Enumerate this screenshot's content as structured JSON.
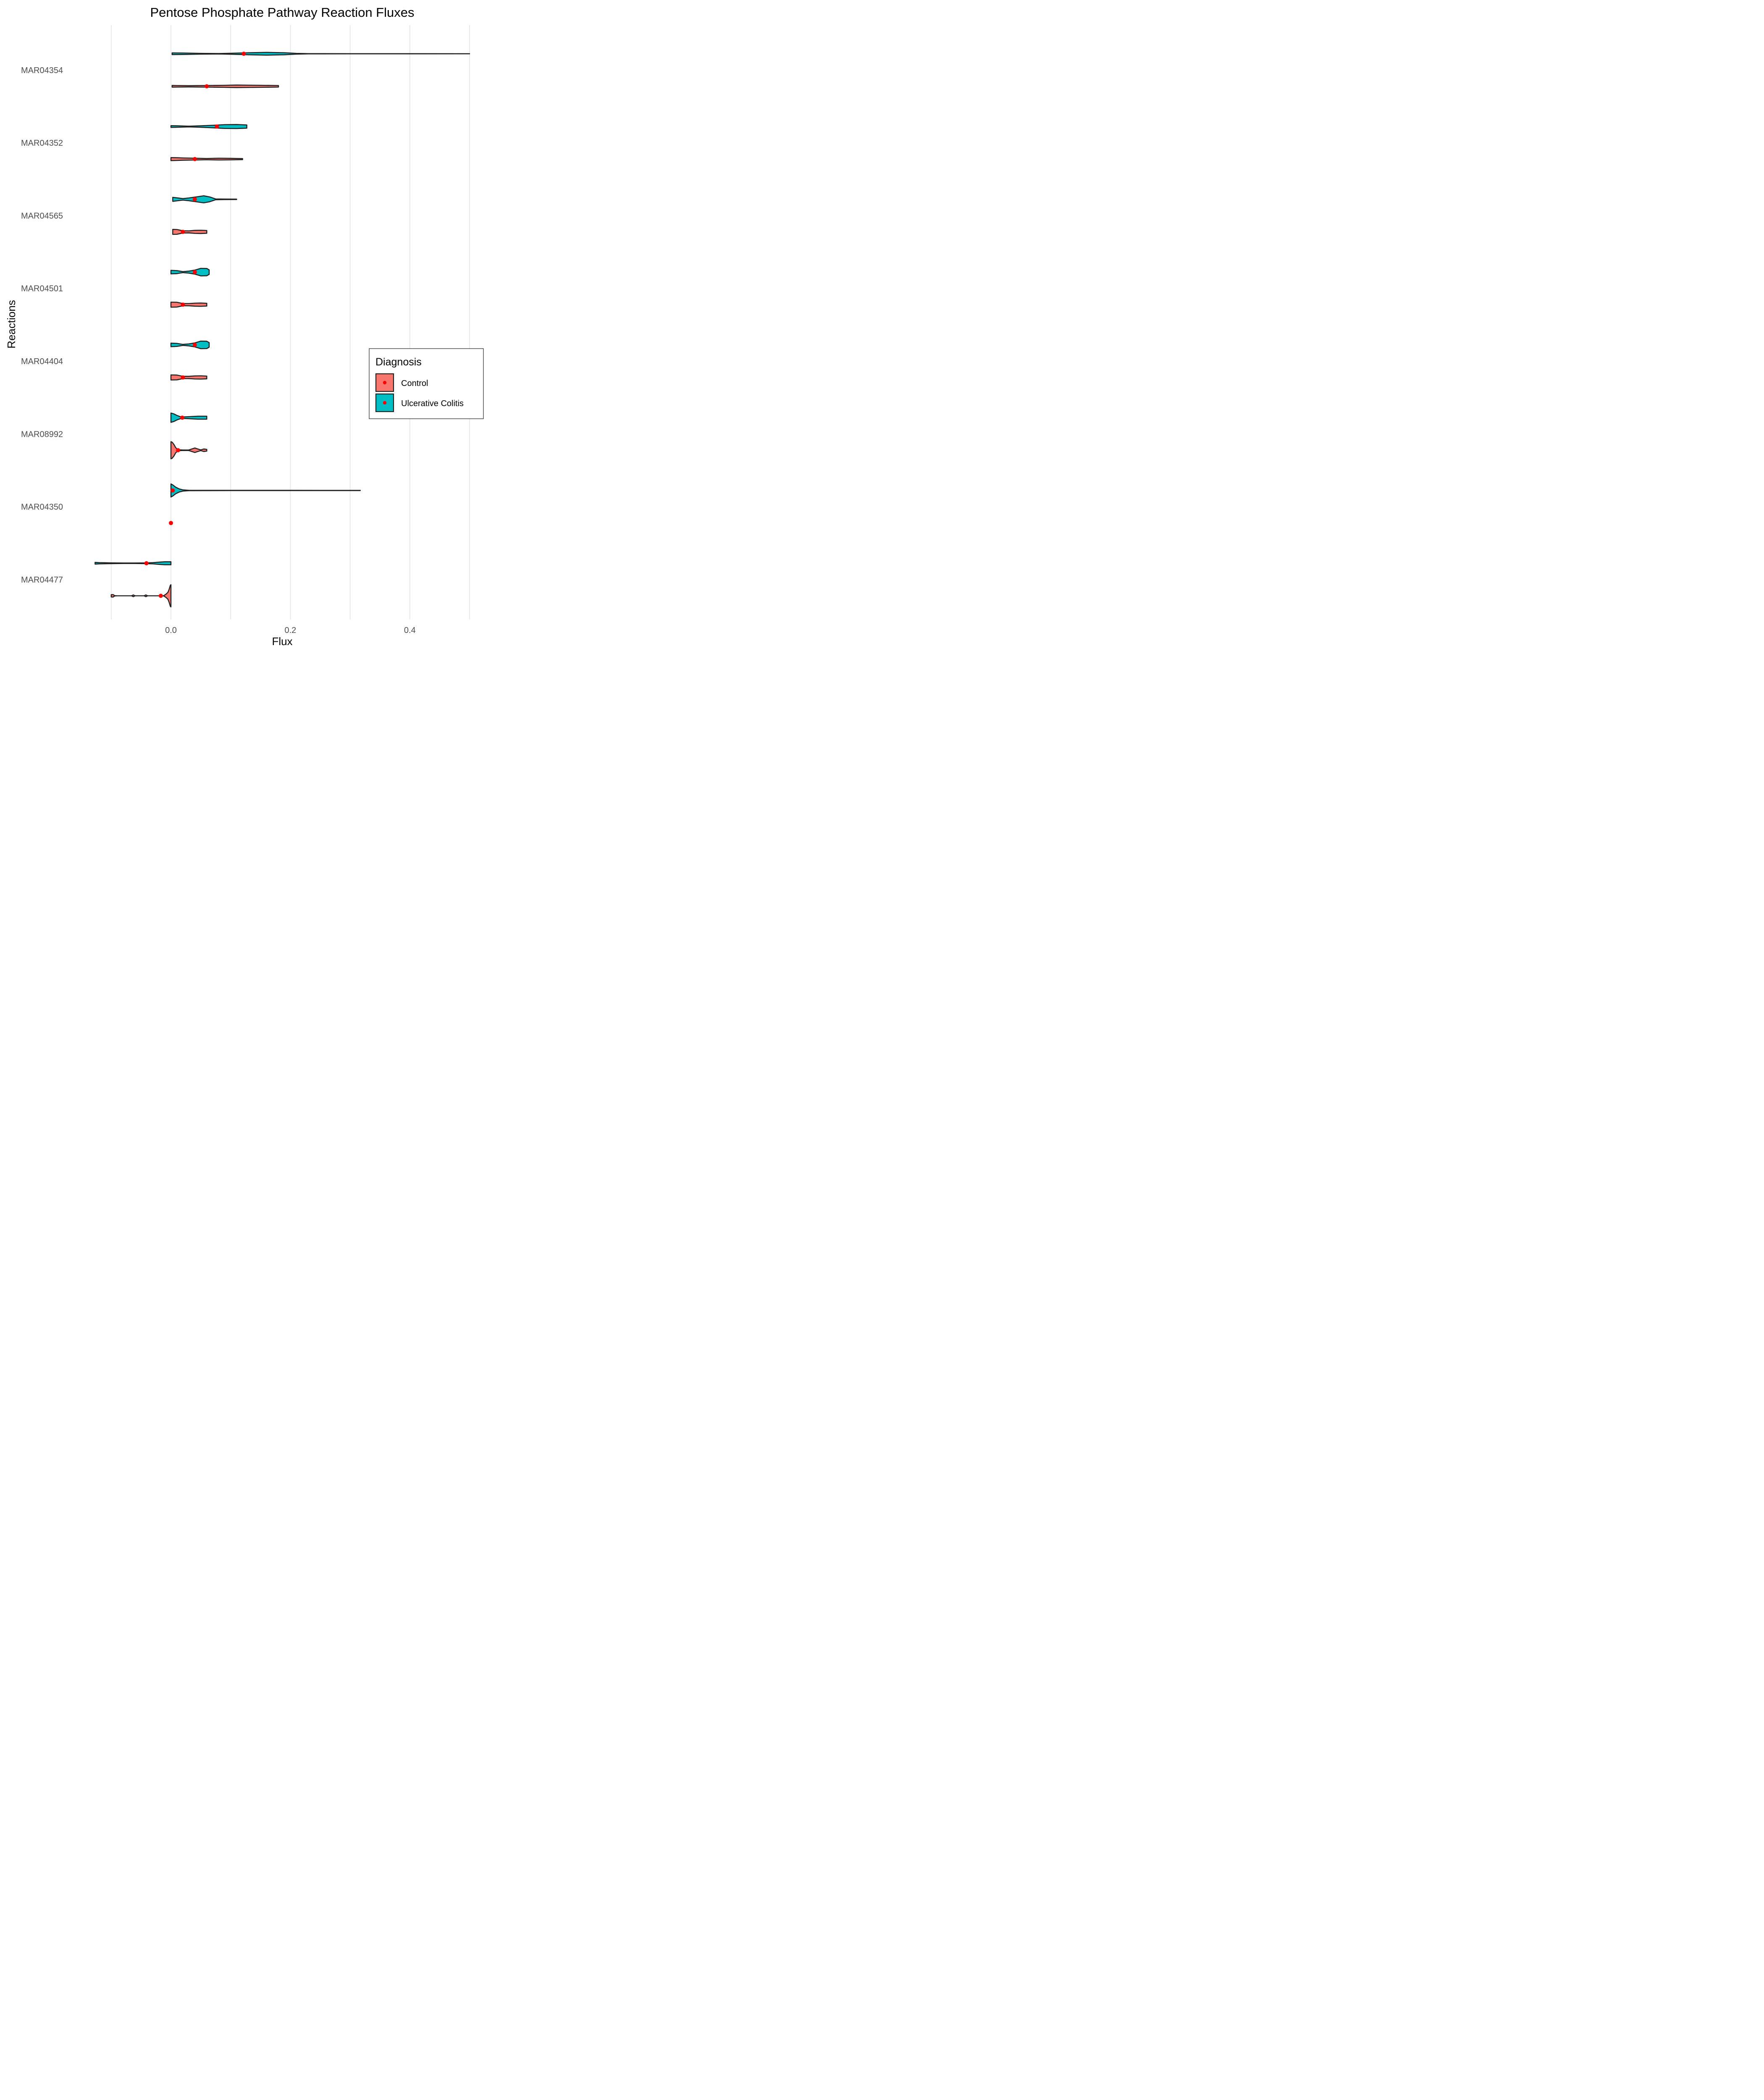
{
  "chart_data": {
    "type": "violin",
    "title": "Pentose Phosphate Pathway Reaction Fluxes",
    "xlabel": "Flux",
    "ylabel": "Reactions",
    "xlim": [
      -0.14,
      0.5
    ],
    "x_ticks": [
      0.0,
      0.2,
      0.4
    ],
    "x_tick_labels": [
      "0.0",
      "0.2",
      "0.4"
    ],
    "orientation": "horizontal",
    "grid": true,
    "legend": {
      "title": "Diagnosis",
      "position": "right",
      "entries": [
        {
          "name": "Control",
          "color": "#F8766D"
        },
        {
          "name": "Ulcerative Colitis",
          "color": "#00BFC4"
        }
      ]
    },
    "mean_marker_color": "#FF0000",
    "categories": [
      "MAR04354",
      "MAR04352",
      "MAR04565",
      "MAR04501",
      "MAR04404",
      "MAR08992",
      "MAR04350",
      "MAR04477"
    ],
    "series": [
      {
        "name": "Control",
        "color": "#F8766D",
        "violins": [
          {
            "reaction": "MAR04354",
            "min": 0.002,
            "max": 0.18,
            "mean": 0.06,
            "density": [
              [
                0.002,
                0.35
              ],
              [
                0.01,
                0.3
              ],
              [
                0.03,
                0.25
              ],
              [
                0.05,
                0.3
              ],
              [
                0.07,
                0.35
              ],
              [
                0.09,
                0.4
              ],
              [
                0.11,
                0.5
              ],
              [
                0.13,
                0.45
              ],
              [
                0.15,
                0.4
              ],
              [
                0.17,
                0.35
              ],
              [
                0.18,
                0.3
              ]
            ]
          },
          {
            "reaction": "MAR04352",
            "min": 0.0,
            "max": 0.12,
            "mean": 0.04,
            "density": [
              [
                0.0,
                0.6
              ],
              [
                0.01,
                0.55
              ],
              [
                0.02,
                0.45
              ],
              [
                0.04,
                0.35
              ],
              [
                0.06,
                0.25
              ],
              [
                0.08,
                0.35
              ],
              [
                0.1,
                0.3
              ],
              [
                0.12,
                0.2
              ]
            ]
          },
          {
            "reaction": "MAR04565",
            "min": 0.003,
            "max": 0.06,
            "mean": 0.02,
            "density": [
              [
                0.003,
                1.0
              ],
              [
                0.01,
                0.95
              ],
              [
                0.015,
                0.7
              ],
              [
                0.02,
                0.45
              ],
              [
                0.03,
                0.4
              ],
              [
                0.04,
                0.6
              ],
              [
                0.05,
                0.65
              ],
              [
                0.06,
                0.55
              ]
            ]
          },
          {
            "reaction": "MAR04501",
            "min": 0.0,
            "max": 0.06,
            "mean": 0.02,
            "density": [
              [
                0.0,
                1.0
              ],
              [
                0.01,
                0.95
              ],
              [
                0.015,
                0.7
              ],
              [
                0.02,
                0.45
              ],
              [
                0.03,
                0.45
              ],
              [
                0.04,
                0.6
              ],
              [
                0.05,
                0.65
              ],
              [
                0.06,
                0.55
              ]
            ]
          },
          {
            "reaction": "MAR04404",
            "min": 0.0,
            "max": 0.06,
            "mean": 0.02,
            "density": [
              [
                0.0,
                1.0
              ],
              [
                0.01,
                0.95
              ],
              [
                0.015,
                0.7
              ],
              [
                0.02,
                0.45
              ],
              [
                0.03,
                0.45
              ],
              [
                0.04,
                0.6
              ],
              [
                0.05,
                0.65
              ],
              [
                0.06,
                0.55
              ]
            ]
          },
          {
            "reaction": "MAR08992",
            "min": 0.0,
            "max": 0.06,
            "mean": 0.012,
            "density": [
              [
                0.0,
                3.4
              ],
              [
                0.002,
                3.2
              ],
              [
                0.005,
                2.3
              ],
              [
                0.008,
                1.0
              ],
              [
                0.012,
                0.2
              ],
              [
                0.02,
                0.1
              ],
              [
                0.03,
                0.12
              ],
              [
                0.04,
                0.9
              ],
              [
                0.045,
                0.5
              ],
              [
                0.05,
                0.15
              ],
              [
                0.055,
                0.5
              ],
              [
                0.06,
                0.35
              ]
            ]
          },
          {
            "reaction": "MAR04350",
            "min": 0.0,
            "max": 0.0,
            "mean": 0.0,
            "density": []
          },
          {
            "reaction": "MAR04477",
            "min": -0.1,
            "max": 0.0,
            "mean": -0.017,
            "density": [
              [
                -0.1,
                0.45
              ],
              [
                -0.097,
                0.5
              ],
              [
                -0.094,
                0.05
              ],
              [
                -0.09,
                0.0
              ],
              [
                -0.066,
                0.0
              ],
              [
                -0.063,
                0.35
              ],
              [
                -0.06,
                0.0
              ],
              [
                -0.045,
                0.0
              ],
              [
                -0.042,
                0.35
              ],
              [
                -0.039,
                0.0
              ],
              [
                -0.02,
                0.0
              ],
              [
                -0.012,
                0.05
              ],
              [
                -0.008,
                0.7
              ],
              [
                -0.005,
                1.4
              ],
              [
                -0.003,
                2.6
              ],
              [
                -0.001,
                4.2
              ],
              [
                0.0,
                4.4
              ]
            ]
          }
        ]
      },
      {
        "name": "Ulcerative Colitis",
        "color": "#00BFC4",
        "violins": [
          {
            "reaction": "MAR04354",
            "min": 0.002,
            "max": 0.5,
            "mean": 0.122,
            "density": [
              [
                0.002,
                0.35
              ],
              [
                0.02,
                0.3
              ],
              [
                0.05,
                0.15
              ],
              [
                0.08,
                0.1
              ],
              [
                0.1,
                0.2
              ],
              [
                0.13,
                0.4
              ],
              [
                0.16,
                0.55
              ],
              [
                0.19,
                0.4
              ],
              [
                0.21,
                0.15
              ],
              [
                0.23,
                0.05
              ],
              [
                0.3,
                0.04
              ],
              [
                0.4,
                0.03
              ],
              [
                0.5,
                0.02
              ]
            ]
          },
          {
            "reaction": "MAR04352",
            "min": 0.0,
            "max": 0.127,
            "mean": 0.077,
            "density": [
              [
                0.0,
                0.35
              ],
              [
                0.01,
                0.3
              ],
              [
                0.03,
                0.15
              ],
              [
                0.05,
                0.3
              ],
              [
                0.07,
                0.5
              ],
              [
                0.09,
                0.75
              ],
              [
                0.11,
                0.8
              ],
              [
                0.12,
                0.7
              ],
              [
                0.127,
                0.65
              ]
            ]
          },
          {
            "reaction": "MAR04565",
            "min": 0.003,
            "max": 0.11,
            "mean": 0.04,
            "density": [
              [
                0.003,
                0.8
              ],
              [
                0.01,
                0.6
              ],
              [
                0.02,
                0.3
              ],
              [
                0.03,
                0.55
              ],
              [
                0.045,
                1.05
              ],
              [
                0.055,
                1.4
              ],
              [
                0.065,
                0.95
              ],
              [
                0.075,
                0.15
              ],
              [
                0.09,
                0.1
              ],
              [
                0.11,
                0.08
              ]
            ]
          },
          {
            "reaction": "MAR04501",
            "min": 0.0,
            "max": 0.064,
            "mean": 0.04,
            "density": [
              [
                0.0,
                0.7
              ],
              [
                0.01,
                0.6
              ],
              [
                0.02,
                0.2
              ],
              [
                0.03,
                0.4
              ],
              [
                0.04,
                0.8
              ],
              [
                0.05,
                1.5
              ],
              [
                0.06,
                1.45
              ],
              [
                0.064,
                0.9
              ]
            ]
          },
          {
            "reaction": "MAR04404",
            "min": 0.0,
            "max": 0.064,
            "mean": 0.04,
            "density": [
              [
                0.0,
                0.7
              ],
              [
                0.01,
                0.6
              ],
              [
                0.02,
                0.2
              ],
              [
                0.03,
                0.4
              ],
              [
                0.04,
                0.8
              ],
              [
                0.05,
                1.5
              ],
              [
                0.06,
                1.45
              ],
              [
                0.064,
                0.9
              ]
            ]
          },
          {
            "reaction": "MAR08992",
            "min": 0.0,
            "max": 0.06,
            "mean": 0.019,
            "density": [
              [
                0.0,
                1.85
              ],
              [
                0.005,
                1.5
              ],
              [
                0.01,
                0.9
              ],
              [
                0.015,
                0.45
              ],
              [
                0.02,
                0.3
              ],
              [
                0.03,
                0.4
              ],
              [
                0.045,
                0.6
              ],
              [
                0.06,
                0.6
              ]
            ]
          },
          {
            "reaction": "MAR04350",
            "min": 0.0,
            "max": 0.317,
            "mean": 0.003,
            "density": [
              [
                0.0,
                2.6
              ],
              [
                0.003,
                2.2
              ],
              [
                0.008,
                1.3
              ],
              [
                0.014,
                0.6
              ],
              [
                0.02,
                0.25
              ],
              [
                0.03,
                0.08
              ],
              [
                0.1,
                0.05
              ],
              [
                0.2,
                0.05
              ],
              [
                0.317,
                0.04
              ]
            ]
          },
          {
            "reaction": "MAR04477",
            "min": -0.127,
            "max": 0.0,
            "mean": -0.041,
            "density": [
              [
                -0.127,
                0.35
              ],
              [
                -0.12,
                0.25
              ],
              [
                -0.1,
                0.15
              ],
              [
                -0.08,
                0.1
              ],
              [
                -0.06,
                0.1
              ],
              [
                -0.041,
                0.15
              ],
              [
                -0.03,
                0.25
              ],
              [
                -0.02,
                0.45
              ],
              [
                -0.01,
                0.6
              ],
              [
                0.0,
                0.6
              ]
            ]
          }
        ]
      }
    ]
  }
}
